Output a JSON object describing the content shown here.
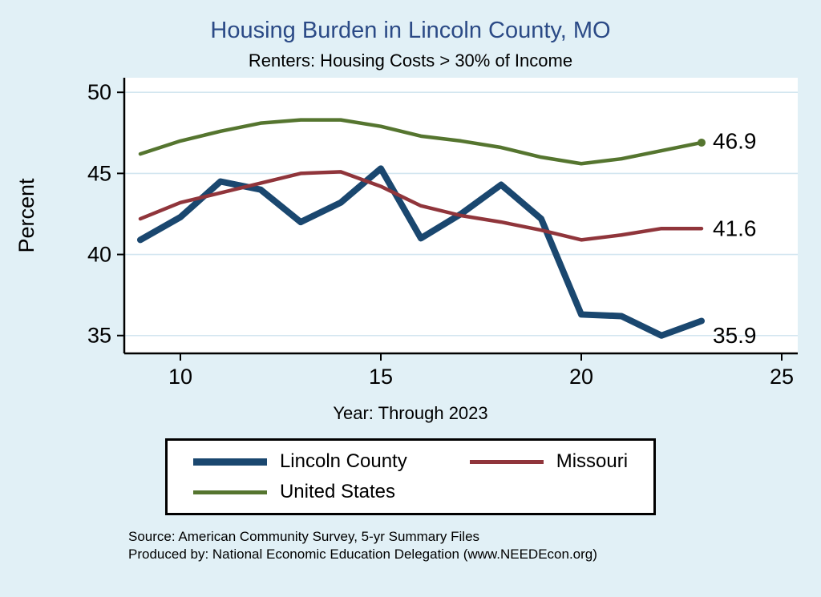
{
  "page": {
    "title": "Housing Burden in Lincoln County, MO",
    "subtitle": "Renters: Housing Costs > 30% of Income",
    "ylabel": "Percent",
    "xlabel": "Year: Through 2023",
    "source_line1": "Source: American Community Survey, 5-yr Summary Files",
    "source_line2": "Produced by: National Economic Education Delegation (www.NEEDEcon.org)"
  },
  "colors": {
    "background": "#e1f0f6",
    "plot_bg": "#ffffff",
    "grid": "#d3e6f0",
    "axis": "#000000",
    "title": "#2b4a86",
    "lincoln": "#1a476f",
    "missouri": "#90353b",
    "us": "#55752f"
  },
  "legend": {
    "position": "bottom",
    "items": [
      {
        "label": "Lincoln County",
        "color_key": "lincoln",
        "thick": true
      },
      {
        "label": "Missouri",
        "color_key": "missouri",
        "thick": false
      },
      {
        "label": "United States",
        "color_key": "us",
        "thick": false
      }
    ]
  },
  "chart_data": {
    "type": "line",
    "title": "Housing Burden in Lincoln County, MO",
    "subtitle": "Renters: Housing Costs > 30% of Income",
    "xlabel": "Year: Through 2023",
    "ylabel": "Percent",
    "x": [
      2009,
      2010,
      2011,
      2012,
      2013,
      2014,
      2015,
      2016,
      2017,
      2018,
      2019,
      2020,
      2021,
      2022,
      2023
    ],
    "series": [
      {
        "name": "Lincoln County",
        "color_key": "lincoln",
        "stroke_width": 8,
        "values": [
          40.9,
          42.3,
          44.5,
          44.0,
          42.0,
          43.2,
          45.3,
          41.0,
          42.5,
          44.3,
          42.2,
          36.3,
          36.2,
          35.0,
          35.9
        ],
        "end_label": "35.9",
        "label_dy": 18,
        "end_marker": false
      },
      {
        "name": "Missouri",
        "color_key": "missouri",
        "stroke_width": 4.5,
        "values": [
          42.2,
          43.2,
          43.8,
          44.4,
          45.0,
          45.1,
          44.2,
          43.0,
          42.4,
          42.0,
          41.5,
          40.9,
          41.2,
          41.6,
          41.6
        ],
        "end_label": "41.6",
        "label_dy": 0,
        "end_marker": false
      },
      {
        "name": "United States",
        "color_key": "us",
        "stroke_width": 4.5,
        "values": [
          46.2,
          47.0,
          47.6,
          48.1,
          48.3,
          48.3,
          47.9,
          47.3,
          47.0,
          46.6,
          46.0,
          45.6,
          45.9,
          46.4,
          46.9
        ],
        "end_label": "46.9",
        "label_dy": -2,
        "end_marker": true
      }
    ],
    "xticks": [
      2010,
      2015,
      2020,
      2025
    ],
    "xtick_labels": [
      "10",
      "15",
      "20",
      "25"
    ],
    "yticks": [
      35,
      40,
      45,
      50
    ],
    "ytick_labels": [
      "35",
      "40",
      "45",
      "50"
    ],
    "xlim": [
      2008.6,
      2025.4
    ],
    "ylim": [
      33.9,
      50.9
    ],
    "grid": "horizontal",
    "legend_position": "bottom"
  }
}
